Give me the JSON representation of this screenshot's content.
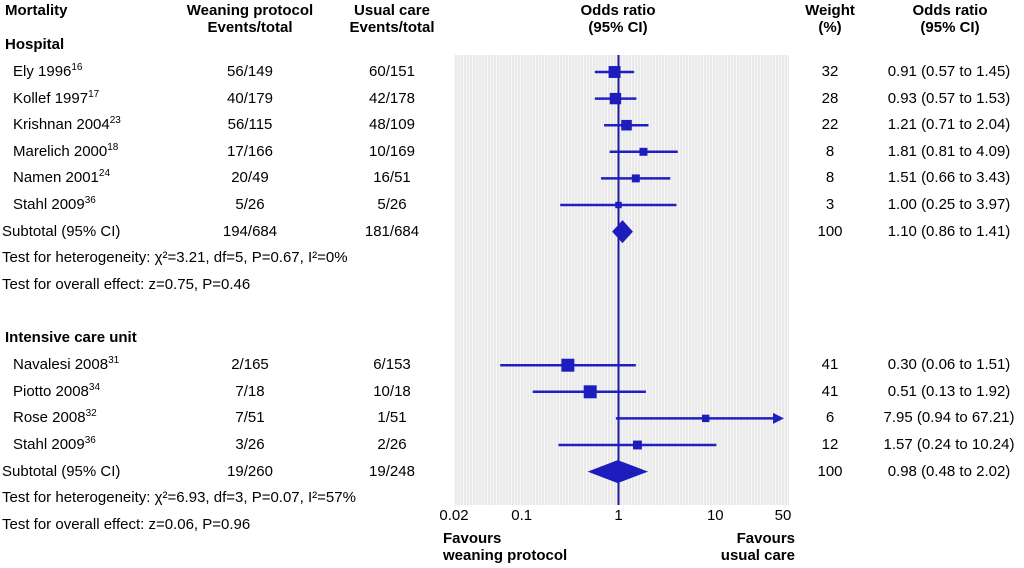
{
  "headers": {
    "mortality": "Mortality",
    "treat": "Weaning protocol\nEvents/total",
    "control": "Usual care\nEvents/total",
    "plot": "Odds ratio\n(95% CI)",
    "weight": "Weight\n(%)",
    "or": "Odds ratio\n(95% CI)"
  },
  "favours": {
    "left": "Favours\nweaning protocol",
    "right": "Favours\nusual care"
  },
  "colors": {
    "marker": "#1d1dbd",
    "ci_line": "#2020c0",
    "no_effect_line": "#1a1aa0",
    "panel": "#ededed",
    "text": "#000000"
  },
  "chart_data": {
    "type": "forest",
    "title": "Mortality",
    "axis": {
      "scale": "log",
      "min": 0.02,
      "max": 50,
      "ticks": [
        "0.02",
        "0.1",
        "1",
        "10",
        "50"
      ],
      "no_effect": 1
    },
    "groups": [
      {
        "name": "Hospital",
        "studies": [
          {
            "label": "Ely 1996",
            "ref": "16",
            "treat": "56/149",
            "control": "60/151",
            "or": 0.91,
            "lo": 0.57,
            "hi": 1.45,
            "weight": 32,
            "weight_text": "32",
            "or_text": "0.91 (0.57 to 1.45)"
          },
          {
            "label": "Kollef 1997",
            "ref": "17",
            "treat": "40/179",
            "control": "42/178",
            "or": 0.93,
            "lo": 0.57,
            "hi": 1.53,
            "weight": 28,
            "weight_text": "28",
            "or_text": "0.93 (0.57 to 1.53)"
          },
          {
            "label": "Krishnan 2004",
            "ref": "23",
            "treat": "56/115",
            "control": "48/109",
            "or": 1.21,
            "lo": 0.71,
            "hi": 2.04,
            "weight": 22,
            "weight_text": "22",
            "or_text": "1.21 (0.71 to 2.04)"
          },
          {
            "label": "Marelich 2000",
            "ref": "18",
            "treat": "17/166",
            "control": "10/169",
            "or": 1.81,
            "lo": 0.81,
            "hi": 4.09,
            "weight": 8,
            "weight_text": "8",
            "or_text": "1.81 (0.81 to 4.09)"
          },
          {
            "label": "Namen 2001",
            "ref": "24",
            "treat": "20/49",
            "control": "16/51",
            "or": 1.51,
            "lo": 0.66,
            "hi": 3.43,
            "weight": 8,
            "weight_text": "8",
            "or_text": "1.51 (0.66 to 3.43)"
          },
          {
            "label": "Stahl 2009",
            "ref": "36",
            "treat": "5/26",
            "control": "5/26",
            "or": 1.0,
            "lo": 0.25,
            "hi": 3.97,
            "weight": 3,
            "weight_text": "3",
            "or_text": "1.00 (0.25 to 3.97)"
          }
        ],
        "subtotal": {
          "label": "Subtotal (95% CI)",
          "treat": "194/684",
          "control": "181/684",
          "or": 1.1,
          "lo": 0.86,
          "hi": 1.41,
          "weight_text": "100",
          "or_text": "1.10 (0.86 to 1.41)"
        },
        "heterogeneity": "Test for heterogeneity: χ²=3.21, df=5, P=0.67, I²=0%",
        "overall": "Test for overall effect: z=0.75, P=0.46"
      },
      {
        "name": "Intensive care unit",
        "studies": [
          {
            "label": "Navalesi 2008",
            "ref": "31",
            "treat": "2/165",
            "control": "6/153",
            "or": 0.3,
            "lo": 0.06,
            "hi": 1.51,
            "weight": 41,
            "weight_text": "41",
            "or_text": "0.30 (0.06 to 1.51)"
          },
          {
            "label": "Piotto 2008",
            "ref": "34",
            "treat": "7/18",
            "control": "10/18",
            "or": 0.51,
            "lo": 0.13,
            "hi": 1.92,
            "weight": 41,
            "weight_text": "41",
            "or_text": "0.51 (0.13 to 1.92)"
          },
          {
            "label": "Rose 2008",
            "ref": "32",
            "treat": "7/51",
            "control": "1/51",
            "or": 7.95,
            "lo": 0.94,
            "hi": 67.21,
            "weight": 6,
            "weight_text": "6",
            "or_text": "7.95 (0.94 to 67.21)"
          },
          {
            "label": "Stahl 2009",
            "ref": "36",
            "treat": "3/26",
            "control": "2/26",
            "or": 1.57,
            "lo": 0.24,
            "hi": 10.24,
            "weight": 12,
            "weight_text": "12",
            "or_text": "1.57 (0.24 to 10.24)"
          }
        ],
        "subtotal": {
          "label": "Subtotal (95% CI)",
          "treat": "19/260",
          "control": "19/248",
          "or": 0.98,
          "lo": 0.48,
          "hi": 2.02,
          "weight_text": "100",
          "or_text": "0.98 (0.48 to 2.02)"
        },
        "heterogeneity": "Test for heterogeneity: χ²=6.93, df=3, P=0.07, I²=57%",
        "overall": "Test for overall effect: z=0.06, P=0.96"
      }
    ]
  }
}
